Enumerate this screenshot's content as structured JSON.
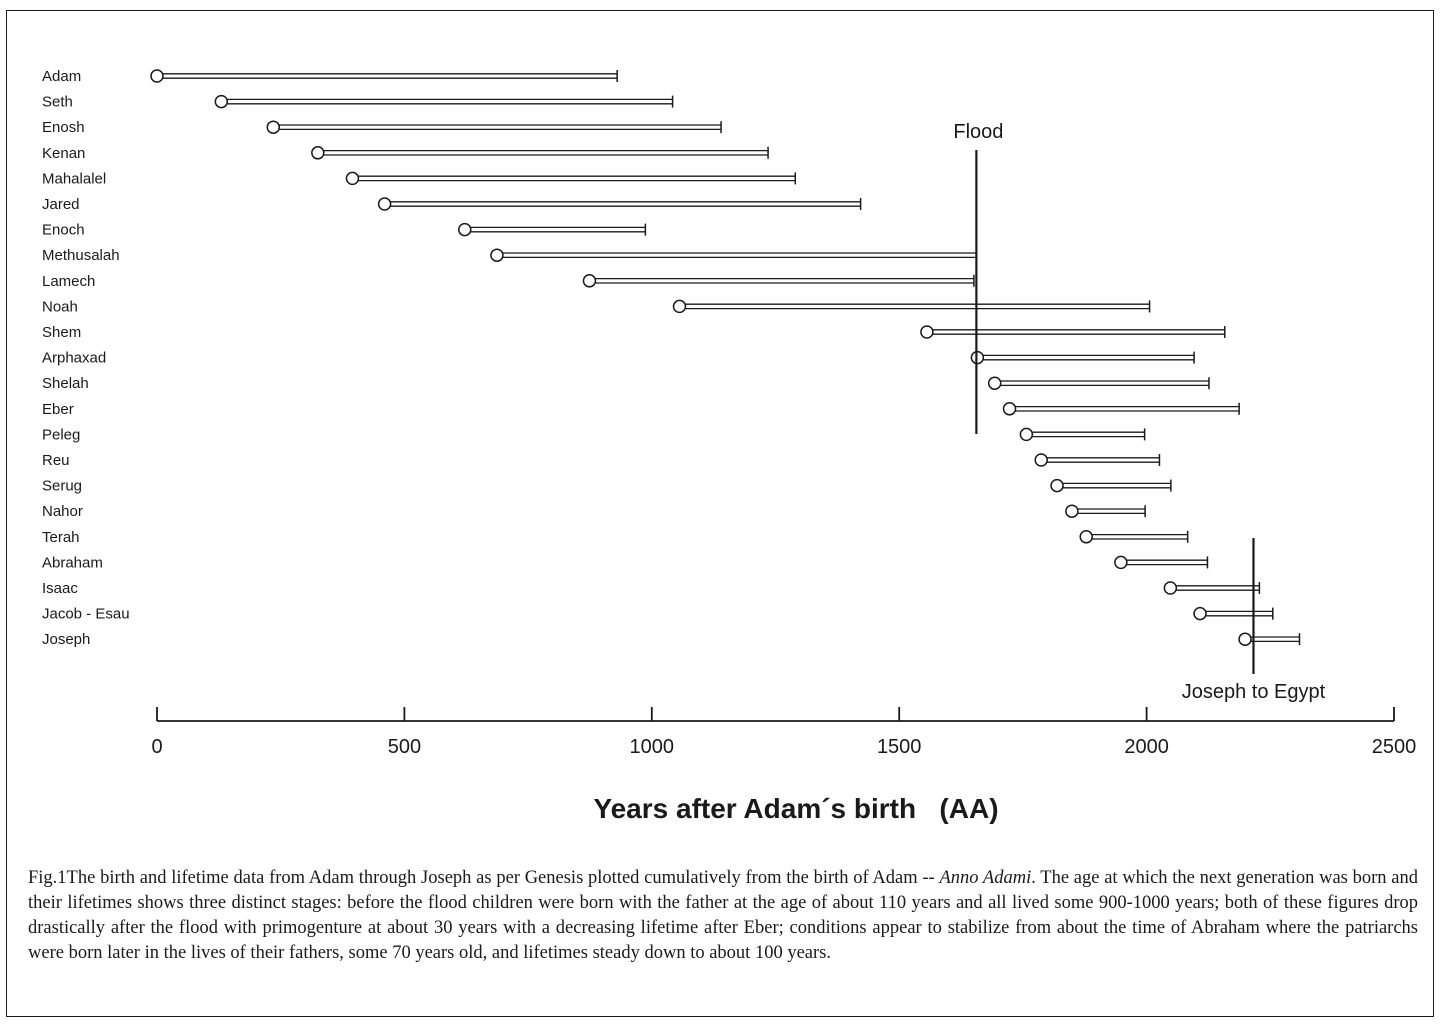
{
  "caption": {
    "part1": "Fig.1The birth and lifetime data from Adam through Joseph as per Genesis plotted cumulatively from the birth of Adam -- ",
    "italic": "Anno Adami",
    "part2": ". The age at which the next generation was born and their lifetimes shows three distinct stages: before the flood children were born with the father at the age of about 110 years and all lived some 900-1000 years; both of these figures drop drastically after the flood with primogenture at about 30 years with a decreasing lifetime after Eber; conditions appear to stabilize from about the time of Abraham where the patriarchs were born later in the lives of their fathers, some 70 years old, and lifetimes steady down to about 100 years."
  },
  "chart_data": {
    "type": "range-bar",
    "xlabel": "Years after Adam´s birth   (AA)",
    "xlim": [
      0,
      2500
    ],
    "xticks": [
      0,
      500,
      1000,
      1500,
      2000,
      2500
    ],
    "xtick_labels": [
      "0",
      "500",
      "1000",
      "1500",
      "2000",
      "2500"
    ],
    "bar_color": "#1a1a1a",
    "lifespans": [
      {
        "name": "Adam",
        "birth": 0,
        "death": 930
      },
      {
        "name": "Seth",
        "birth": 130,
        "death": 1042
      },
      {
        "name": "Enosh",
        "birth": 235,
        "death": 1140
      },
      {
        "name": "Kenan",
        "birth": 325,
        "death": 1235
      },
      {
        "name": "Mahalalel",
        "birth": 395,
        "death": 1290
      },
      {
        "name": "Jared",
        "birth": 460,
        "death": 1422
      },
      {
        "name": "Enoch",
        "birth": 622,
        "death": 987
      },
      {
        "name": "Methusalah",
        "birth": 687,
        "death": 1656
      },
      {
        "name": "Lamech",
        "birth": 874,
        "death": 1651
      },
      {
        "name": "Noah",
        "birth": 1056,
        "death": 2006
      },
      {
        "name": "Shem",
        "birth": 1556,
        "death": 2158
      },
      {
        "name": "Arphaxad",
        "birth": 1658,
        "death": 2096
      },
      {
        "name": "Shelah",
        "birth": 1693,
        "death": 2126
      },
      {
        "name": "Eber",
        "birth": 1723,
        "death": 2187
      },
      {
        "name": "Peleg",
        "birth": 1757,
        "death": 1996
      },
      {
        "name": "Reu",
        "birth": 1787,
        "death": 2026
      },
      {
        "name": "Serug",
        "birth": 1819,
        "death": 2049
      },
      {
        "name": "Nahor",
        "birth": 1849,
        "death": 1997
      },
      {
        "name": "Terah",
        "birth": 1878,
        "death": 2083
      },
      {
        "name": "Abraham",
        "birth": 1948,
        "death": 2123
      },
      {
        "name": "Isaac",
        "birth": 2048,
        "death": 2228
      },
      {
        "name": "Jacob - Esau",
        "birth": 2108,
        "death": 2255
      },
      {
        "name": "Joseph",
        "birth": 2199,
        "death": 2309
      }
    ],
    "events": [
      {
        "label": "Flood",
        "x": 1656,
        "label_position": "top"
      },
      {
        "label": "Joseph to Egypt",
        "x": 2216,
        "label_position": "bottom"
      }
    ]
  }
}
